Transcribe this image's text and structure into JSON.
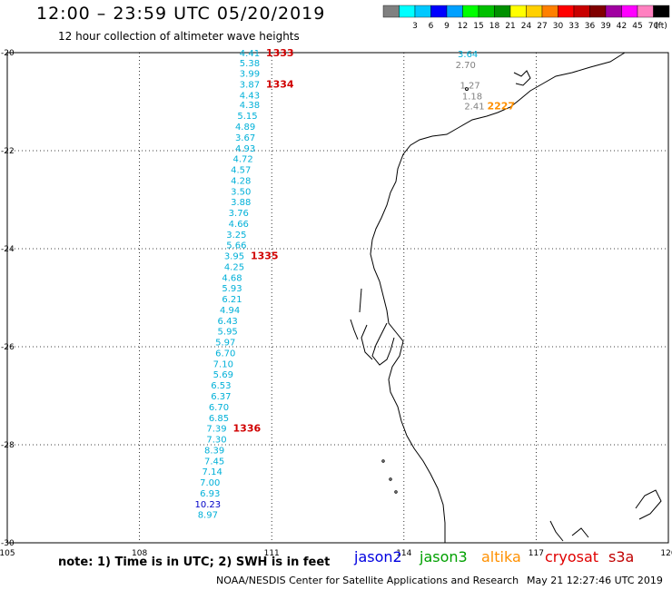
{
  "header": {
    "title": "12:00 – 23:59 UTC 05/20/2019",
    "subtitle": "12 hour collection of altimeter wave heights"
  },
  "color_scale": {
    "unit_label": "(ft)",
    "bins": [
      {
        "label": "",
        "color": "#808080"
      },
      {
        "label": "3",
        "color": "#00ffff"
      },
      {
        "label": "6",
        "color": "#00c8ff"
      },
      {
        "label": "9",
        "color": "#0000ff"
      },
      {
        "label": "12",
        "color": "#00a0ff"
      },
      {
        "label": "15",
        "color": "#00ff00"
      },
      {
        "label": "18",
        "color": "#00c000"
      },
      {
        "label": "21",
        "color": "#009000"
      },
      {
        "label": "24",
        "color": "#ffff00"
      },
      {
        "label": "27",
        "color": "#ffd000"
      },
      {
        "label": "30",
        "color": "#ff8000"
      },
      {
        "label": "33",
        "color": "#ff0000"
      },
      {
        "label": "36",
        "color": "#c80000"
      },
      {
        "label": "39",
        "color": "#800000"
      },
      {
        "label": "42",
        "color": "#a000a0"
      },
      {
        "label": "45",
        "color": "#ff00ff"
      },
      {
        "label": "70",
        "color": "#ff80c0"
      },
      {
        "label": "",
        "color": "#000000"
      }
    ]
  },
  "map": {
    "lon_range": [
      105,
      120
    ],
    "lat_range": [
      -30,
      -20
    ],
    "lon_ticks": [
      "105",
      "108",
      "111",
      "114",
      "117",
      "120"
    ],
    "lat_ticks": [
      "-20",
      "-22",
      "-24",
      "-26",
      "-28",
      "-30"
    ],
    "gridlines": "dotted"
  },
  "track_main": {
    "color_default": "#00b0d8",
    "points": [
      {
        "value": "4.41",
        "lat": -20.0,
        "lon": 110.5
      },
      {
        "value": "5.38",
        "lat": -20.2,
        "lon": 110.5
      },
      {
        "value": "3.99",
        "lat": -20.42,
        "lon": 110.5
      },
      {
        "value": "3.87",
        "lat": -20.64,
        "lon": 110.5
      },
      {
        "value": "4.43",
        "lat": -20.86,
        "lon": 110.5
      },
      {
        "value": "4.38",
        "lat": -21.06,
        "lon": 110.5
      },
      {
        "value": "5.15",
        "lat": -21.28,
        "lon": 110.45
      },
      {
        "value": "4.89",
        "lat": -21.5,
        "lon": 110.4
      },
      {
        "value": "3.67",
        "lat": -21.72,
        "lon": 110.4
      },
      {
        "value": "4.93",
        "lat": -21.94,
        "lon": 110.4
      },
      {
        "value": "4.72",
        "lat": -22.16,
        "lon": 110.35
      },
      {
        "value": "4.57",
        "lat": -22.38,
        "lon": 110.3
      },
      {
        "value": "4.28",
        "lat": -22.6,
        "lon": 110.3
      },
      {
        "value": "3.50",
        "lat": -22.82,
        "lon": 110.3
      },
      {
        "value": "3.88",
        "lat": -23.04,
        "lon": 110.3
      },
      {
        "value": "3.76",
        "lat": -23.26,
        "lon": 110.25
      },
      {
        "value": "4.66",
        "lat": -23.48,
        "lon": 110.25
      },
      {
        "value": "3.25",
        "lat": -23.7,
        "lon": 110.2
      },
      {
        "value": "5.66",
        "lat": -23.92,
        "lon": 110.2
      },
      {
        "value": "3.95",
        "lat": -24.14,
        "lon": 110.15
      },
      {
        "value": "4.25",
        "lat": -24.36,
        "lon": 110.15
      },
      {
        "value": "4.68",
        "lat": -24.58,
        "lon": 110.1
      },
      {
        "value": "5.93",
        "lat": -24.8,
        "lon": 110.1
      },
      {
        "value": "6.21",
        "lat": -25.02,
        "lon": 110.1
      },
      {
        "value": "4.94",
        "lat": -25.24,
        "lon": 110.05
      },
      {
        "value": "6.43",
        "lat": -25.46,
        "lon": 110.0
      },
      {
        "value": "5.95",
        "lat": -25.68,
        "lon": 110.0
      },
      {
        "value": "5.97",
        "lat": -25.9,
        "lon": 109.95
      },
      {
        "value": "6.70",
        "lat": -26.12,
        "lon": 109.95
      },
      {
        "value": "7.10",
        "lat": -26.34,
        "lon": 109.9
      },
      {
        "value": "5.69",
        "lat": -26.56,
        "lon": 109.9
      },
      {
        "value": "6.53",
        "lat": -26.78,
        "lon": 109.85
      },
      {
        "value": "6.37",
        "lat": -27.0,
        "lon": 109.85
      },
      {
        "value": "6.70",
        "lat": -27.22,
        "lon": 109.8
      },
      {
        "value": "6.85",
        "lat": -27.44,
        "lon": 109.8
      },
      {
        "value": "7.39",
        "lat": -27.66,
        "lon": 109.75
      },
      {
        "value": "7.30",
        "lat": -27.88,
        "lon": 109.75
      },
      {
        "value": "8.39",
        "lat": -28.1,
        "lon": 109.7
      },
      {
        "value": "7.45",
        "lat": -28.32,
        "lon": 109.7
      },
      {
        "value": "7.14",
        "lat": -28.54,
        "lon": 109.65
      },
      {
        "value": "7.00",
        "lat": -28.76,
        "lon": 109.6
      },
      {
        "value": "6.93",
        "lat": -28.98,
        "lon": 109.6
      },
      {
        "value": "10.23",
        "lat": -29.2,
        "lon": 109.55,
        "color": "#0000c8"
      },
      {
        "value": "8.97",
        "lat": -29.42,
        "lon": 109.55
      }
    ],
    "time_labels": [
      {
        "text": "1333",
        "lat": -20.0
      },
      {
        "text": "1334",
        "lat": -20.64
      },
      {
        "text": "1335",
        "lat": -24.14
      },
      {
        "text": "1336",
        "lat": -27.66
      }
    ]
  },
  "track_ne": {
    "points": [
      {
        "value": "3.64",
        "lat": -20.02,
        "lon": 115.45,
        "color": "#00b0d8"
      },
      {
        "value": "2.70",
        "lat": -20.24,
        "lon": 115.4,
        "color": "#808080"
      },
      {
        "value": "1.27",
        "lat": -20.66,
        "lon": 115.5,
        "color": "#808080"
      },
      {
        "value": "1.18",
        "lat": -20.88,
        "lon": 115.55,
        "color": "#808080"
      },
      {
        "value": "2.41",
        "lat": -21.08,
        "lon": 115.6,
        "color": "#808080"
      }
    ],
    "time_label": {
      "text": "2227",
      "lat": -21.08
    }
  },
  "footer": {
    "note": "note: 1) Time is in UTC; 2) SWH is in feet",
    "missions": [
      {
        "name": "jason2",
        "color": "#0000e0"
      },
      {
        "name": "jason3",
        "color": "#00a000"
      },
      {
        "name": "altika",
        "color": "#ff9000"
      },
      {
        "name": "cryosat",
        "color": "#e00000"
      },
      {
        "name": "s3a",
        "color": "#c00000"
      }
    ],
    "credit": "NOAA/NESDIS Center for Satellite Applications and Research",
    "timestamp": "May 21 12:27:46 UTC 2019"
  },
  "colors": {
    "time_label": "#d00000",
    "time_label_ne": "#ff9000"
  }
}
